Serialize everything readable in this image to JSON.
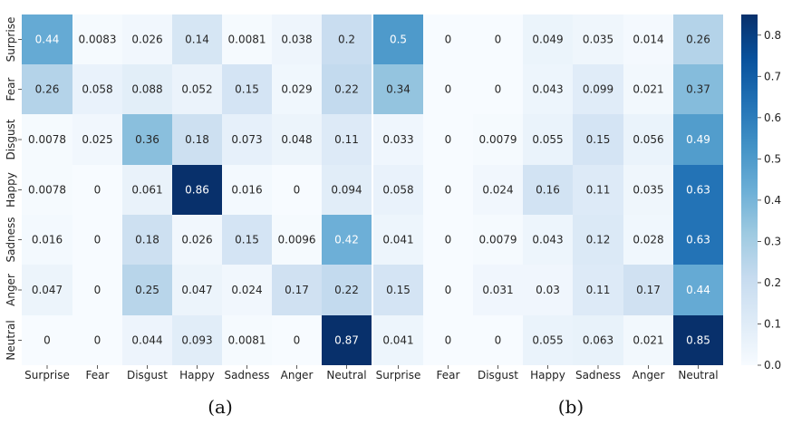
{
  "chart_data": [
    {
      "type": "heatmap",
      "panel_label": "(a)",
      "rows": [
        "Surprise",
        "Fear",
        "Disgust",
        "Happy",
        "Sadness",
        "Anger",
        "Neutral"
      ],
      "cols": [
        "Surprise",
        "Fear",
        "Disgust",
        "Happy",
        "Sadness",
        "Anger",
        "Neutral"
      ],
      "values": [
        [
          "0.44",
          "0.0083",
          "0.026",
          "0.14",
          "0.0081",
          "0.038",
          "0.2"
        ],
        [
          "0.26",
          "0.058",
          "0.088",
          "0.052",
          "0.15",
          "0.029",
          "0.22"
        ],
        [
          "0.0078",
          "0.025",
          "0.36",
          "0.18",
          "0.073",
          "0.048",
          "0.11"
        ],
        [
          "0.0078",
          "0",
          "0.061",
          "0.86",
          "0.016",
          "0",
          "0.094"
        ],
        [
          "0.016",
          "0",
          "0.18",
          "0.026",
          "0.15",
          "0.0096",
          "0.42"
        ],
        [
          "0.047",
          "0",
          "0.25",
          "0.047",
          "0.024",
          "0.17",
          "0.22"
        ],
        [
          "0",
          "0",
          "0.044",
          "0.093",
          "0.0081",
          "0",
          "0.87"
        ]
      ]
    },
    {
      "type": "heatmap",
      "panel_label": "(b)",
      "rows": [
        "Surprise",
        "Fear",
        "Disgust",
        "Happy",
        "Sadness",
        "Anger",
        "Neutral"
      ],
      "cols": [
        "Surprise",
        "Fear",
        "Disgust",
        "Happy",
        "Sadness",
        "Anger",
        "Neutral"
      ],
      "values": [
        [
          "0.5",
          "0",
          "0",
          "0.049",
          "0.035",
          "0.014",
          "0.26"
        ],
        [
          "0.34",
          "0",
          "0",
          "0.043",
          "0.099",
          "0.021",
          "0.37"
        ],
        [
          "0.033",
          "0",
          "0.0079",
          "0.055",
          "0.15",
          "0.056",
          "0.49"
        ],
        [
          "0.058",
          "0",
          "0.024",
          "0.16",
          "0.11",
          "0.035",
          "0.63"
        ],
        [
          "0.041",
          "0",
          "0.0079",
          "0.043",
          "0.12",
          "0.028",
          "0.63"
        ],
        [
          "0.15",
          "0",
          "0.031",
          "0.03",
          "0.11",
          "0.17",
          "0.44"
        ],
        [
          "0.041",
          "0",
          "0",
          "0.055",
          "0.063",
          "0.021",
          "0.85"
        ]
      ]
    }
  ],
  "colorbar": {
    "colormap": "Blues",
    "range": [
      0.0,
      0.85
    ],
    "ticks": [
      "0.0",
      "0.1",
      "0.2",
      "0.3",
      "0.4",
      "0.5",
      "0.6",
      "0.7",
      "0.8"
    ]
  },
  "colors": {
    "low": "#f7fbff",
    "high": "#08306b",
    "text_dark": "#262626",
    "text_light": "#ffffff"
  }
}
